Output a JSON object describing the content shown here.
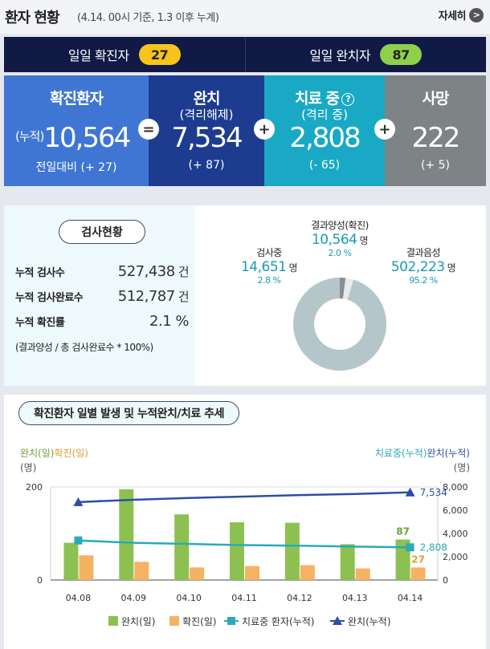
{
  "header": {
    "title": "환자 현황",
    "subtitle": "(4.14. 00시 기준, 1.3 이후 누계)",
    "more_label": "자세히",
    "more_arrow": ">"
  },
  "daily": {
    "confirmed_label": "일일 확진자",
    "confirmed_value": "27",
    "released_label": "일일 완치자",
    "released_value": "87"
  },
  "stats": {
    "confirmed": {
      "label": "확진환자",
      "prefix": "(누적)",
      "value": "10,564",
      "delta": "전일대비 (+ 27)"
    },
    "op_equals": "=",
    "released": {
      "label": "완치",
      "sub": "(격리해제)",
      "value": "7,534",
      "delta": "(+ 87)"
    },
    "op_plus1": "+",
    "treating": {
      "label": "치료 중",
      "help": "?",
      "sub": "(격리 중)",
      "value": "2,808",
      "delta": "(- 65)"
    },
    "op_plus2": "+",
    "deaths": {
      "label": "사망",
      "value": "222",
      "delta": "(+ 5)"
    }
  },
  "testing": {
    "title": "검사현황",
    "rows": [
      {
        "label": "누적 검사수",
        "value": "527,438",
        "unit": "건"
      },
      {
        "label": "누적 검사완료수",
        "value": "512,787",
        "unit": "건"
      },
      {
        "label": "누적 확진률",
        "value": "2.1 %",
        "unit": ""
      }
    ],
    "note": "(결과양성 / 총 검사완료수 * 100%)",
    "donut": {
      "positive": {
        "label": "결과양성(확진)",
        "value": "10,564",
        "unit": "명",
        "pct": "2.0 %",
        "share": 2.0,
        "color": "#8a8f94"
      },
      "testing": {
        "label": "검사중",
        "value": "14,651",
        "unit": "명",
        "pct": "2.8 %",
        "share": 2.8,
        "color": "#e7e9eb"
      },
      "negative": {
        "label": "결과음성",
        "value": "502,223",
        "unit": "명",
        "pct": "95.2 %",
        "share": 95.2,
        "color": "#b4c6ca"
      }
    }
  },
  "trend": {
    "title": "확진환자 일별 발생 및 누적완치/치료 추세",
    "left_axis_a": "완치(일)",
    "left_axis_b": "확진(일)",
    "left_unit": "(명)",
    "right_axis_a": "치료중(누적)",
    "right_axis_b": "완치(누적)",
    "right_unit": "(명)",
    "legend": [
      "완치(일)",
      "확진(일)",
      "치료중 환자(누적)",
      "완치(누적)"
    ]
  },
  "chart_data": {
    "type": "bar",
    "categories": [
      "04.08",
      "04.09",
      "04.10",
      "04.11",
      "04.12",
      "04.13",
      "04.14"
    ],
    "left_ylim": [
      0,
      200
    ],
    "left_ticks": [
      "0",
      "200"
    ],
    "right_ylim": [
      0,
      8000
    ],
    "right_ticks": [
      "0",
      "2,000",
      "4,000",
      "6,000",
      "8,000"
    ],
    "series": [
      {
        "name": "완치(일)",
        "kind": "bar",
        "axis": "left",
        "color": "#8cc152",
        "values": [
          80,
          195,
          141,
          124,
          123,
          77,
          87
        ]
      },
      {
        "name": "확진(일)",
        "kind": "bar",
        "axis": "left",
        "color": "#f5b263",
        "values": [
          53,
          39,
          27,
          30,
          32,
          25,
          27
        ]
      },
      {
        "name": "치료중 환자(누적)",
        "kind": "line",
        "axis": "right",
        "color": "#2aaab8",
        "values": [
          3400,
          3200,
          3100,
          3000,
          2950,
          2870,
          2808
        ]
      },
      {
        "name": "완치(누적)",
        "kind": "line",
        "axis": "right",
        "color": "#2d4ea6",
        "values": [
          6700,
          6900,
          7050,
          7170,
          7300,
          7400,
          7534
        ]
      }
    ],
    "annotations": {
      "released_last": "7,534",
      "treating_last": "2,808",
      "bar_release_last": "87",
      "bar_confirm_last": "27"
    }
  }
}
